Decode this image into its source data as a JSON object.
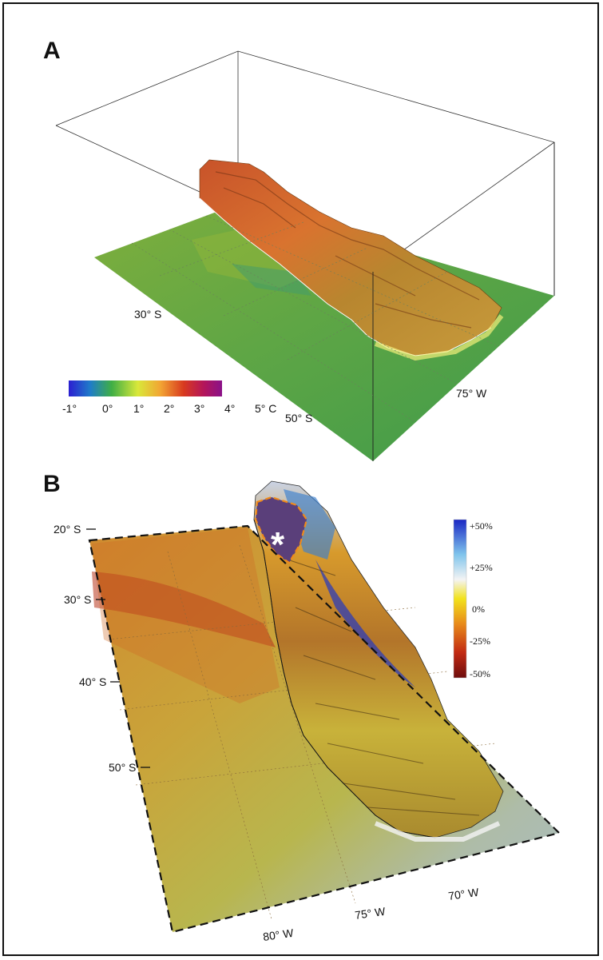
{
  "panel_a": {
    "letter": "A",
    "lat_labels": [
      "30°  S",
      "50°  S"
    ],
    "lon_label": "75°  W",
    "colorbar_ticks": [
      "-1°",
      "0°",
      "1°",
      "2°",
      "3°",
      "4°",
      "5°  C"
    ],
    "colorbar_colors": [
      "#2b1fd1",
      "#1f7cc9",
      "#3fae45",
      "#d9e83a",
      "#f2a433",
      "#d83a1f",
      "#b4155a",
      "#8a1289"
    ]
  },
  "panel_b": {
    "letter": "B",
    "lat_labels": [
      "20°  S",
      "30°  S",
      "40°  S",
      "50°  S"
    ],
    "lon_labels": [
      "80°  W",
      "75°  W",
      "70°  W"
    ],
    "marker": "*",
    "legend_ticks": [
      "+50%",
      "+25%",
      "0%",
      "-25%",
      "-50%"
    ],
    "legend_colors": [
      "#1b27c4",
      "#7fc4ec",
      "#f4f4f4",
      "#f2e21c",
      "#e88a1a",
      "#c22a12",
      "#6e0d0d"
    ]
  }
}
